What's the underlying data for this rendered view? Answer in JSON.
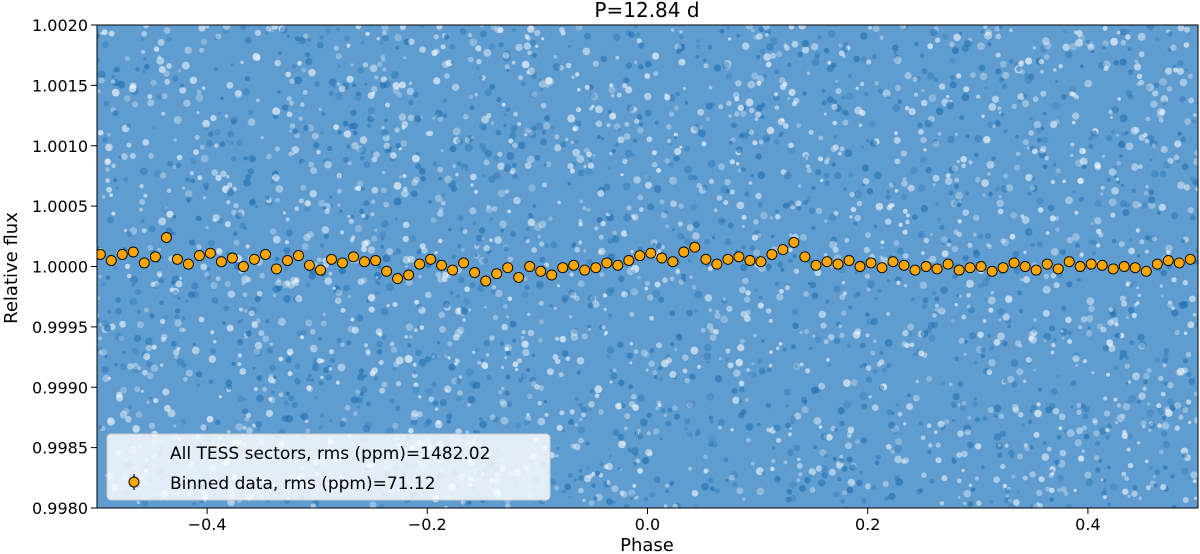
{
  "chart_data": {
    "type": "scatter",
    "title": "P=12.84 d",
    "xlabel": "Phase",
    "ylabel": "Relative flux",
    "xlim": [
      -0.5,
      0.5
    ],
    "ylim": [
      0.998,
      1.002
    ],
    "x_ticks": [
      -0.4,
      -0.2,
      0.0,
      0.2,
      0.4
    ],
    "x_tick_labels": [
      "−0.4",
      "−0.2",
      "0.0",
      "0.2",
      "0.4"
    ],
    "y_ticks": [
      0.998,
      0.9985,
      0.999,
      0.9995,
      1.0,
      1.0005,
      1.001,
      1.0015,
      1.002
    ],
    "y_tick_labels": [
      "0.9980",
      "0.9985",
      "0.9990",
      "0.9995",
      "1.0000",
      "1.0005",
      "1.0010",
      "1.0015",
      "1.0020"
    ],
    "grid": false,
    "legend_position": "lower-left",
    "series": [
      {
        "name": "All TESS sectors, rms (ppm)=1482.02",
        "marker": "dense point cloud",
        "color": "#1f77b4",
        "center": 1.0,
        "rms_ppm": 1482.02
      },
      {
        "name": "Binned data, rms (ppm)=71.12",
        "marker": "circle with error bar",
        "color": "#ffa500",
        "edge_color": "#000000",
        "x": [
          -0.497,
          -0.487,
          -0.477,
          -0.467,
          -0.457,
          -0.447,
          -0.437,
          -0.427,
          -0.417,
          -0.407,
          -0.397,
          -0.387,
          -0.377,
          -0.367,
          -0.357,
          -0.347,
          -0.337,
          -0.327,
          -0.317,
          -0.307,
          -0.297,
          -0.287,
          -0.277,
          -0.267,
          -0.257,
          -0.247,
          -0.237,
          -0.227,
          -0.217,
          -0.207,
          -0.197,
          -0.187,
          -0.177,
          -0.167,
          -0.157,
          -0.147,
          -0.137,
          -0.127,
          -0.117,
          -0.107,
          -0.097,
          -0.087,
          -0.077,
          -0.067,
          -0.057,
          -0.047,
          -0.037,
          -0.027,
          -0.017,
          -0.007,
          0.003,
          0.013,
          0.023,
          0.033,
          0.043,
          0.053,
          0.063,
          0.073,
          0.083,
          0.093,
          0.103,
          0.113,
          0.123,
          0.133,
          0.143,
          0.153,
          0.163,
          0.173,
          0.183,
          0.193,
          0.203,
          0.213,
          0.223,
          0.233,
          0.243,
          0.253,
          0.263,
          0.273,
          0.283,
          0.293,
          0.303,
          0.313,
          0.323,
          0.333,
          0.343,
          0.353,
          0.363,
          0.373,
          0.383,
          0.393,
          0.403,
          0.413,
          0.423,
          0.433,
          0.443,
          0.453,
          0.463,
          0.473,
          0.483,
          0.493
        ],
        "y": [
          1.0001,
          1.00005,
          1.0001,
          1.00012,
          1.00003,
          1.00008,
          1.00024,
          1.00006,
          1.00002,
          1.00009,
          1.00011,
          1.00004,
          1.00007,
          1.0,
          1.00006,
          1.0001,
          0.99998,
          1.00005,
          1.00009,
          1.00001,
          0.99997,
          1.00006,
          1.00003,
          1.00008,
          1.00004,
          1.00005,
          0.99996,
          0.9999,
          0.99993,
          1.00002,
          1.00006,
          1.00001,
          0.99997,
          1.00003,
          0.99995,
          0.99988,
          0.99994,
          0.99999,
          0.99991,
          1.0,
          0.99996,
          0.99993,
          0.99999,
          1.00001,
          0.99997,
          0.99999,
          1.00003,
          1.00001,
          1.00005,
          1.00009,
          1.00011,
          1.00007,
          1.00004,
          1.00012,
          1.00016,
          1.00006,
          1.00002,
          1.00006,
          1.00008,
          1.00005,
          1.00004,
          1.0001,
          1.00014,
          1.0002,
          1.00008,
          1.00001,
          1.00004,
          1.00002,
          1.00005,
          1.0,
          1.00003,
          0.99999,
          1.00004,
          1.00001,
          0.99997,
          1.0,
          0.99998,
          1.00002,
          0.99997,
          0.99999,
          1.0,
          0.99996,
          0.99999,
          1.00003,
          1.0,
          0.99997,
          1.00002,
          0.99998,
          1.00004,
          1.0,
          1.00002,
          1.00001,
          0.99998,
          1.0,
          0.99999,
          0.99996,
          1.00002,
          1.00005,
          1.00003,
          1.00006
        ]
      }
    ]
  }
}
